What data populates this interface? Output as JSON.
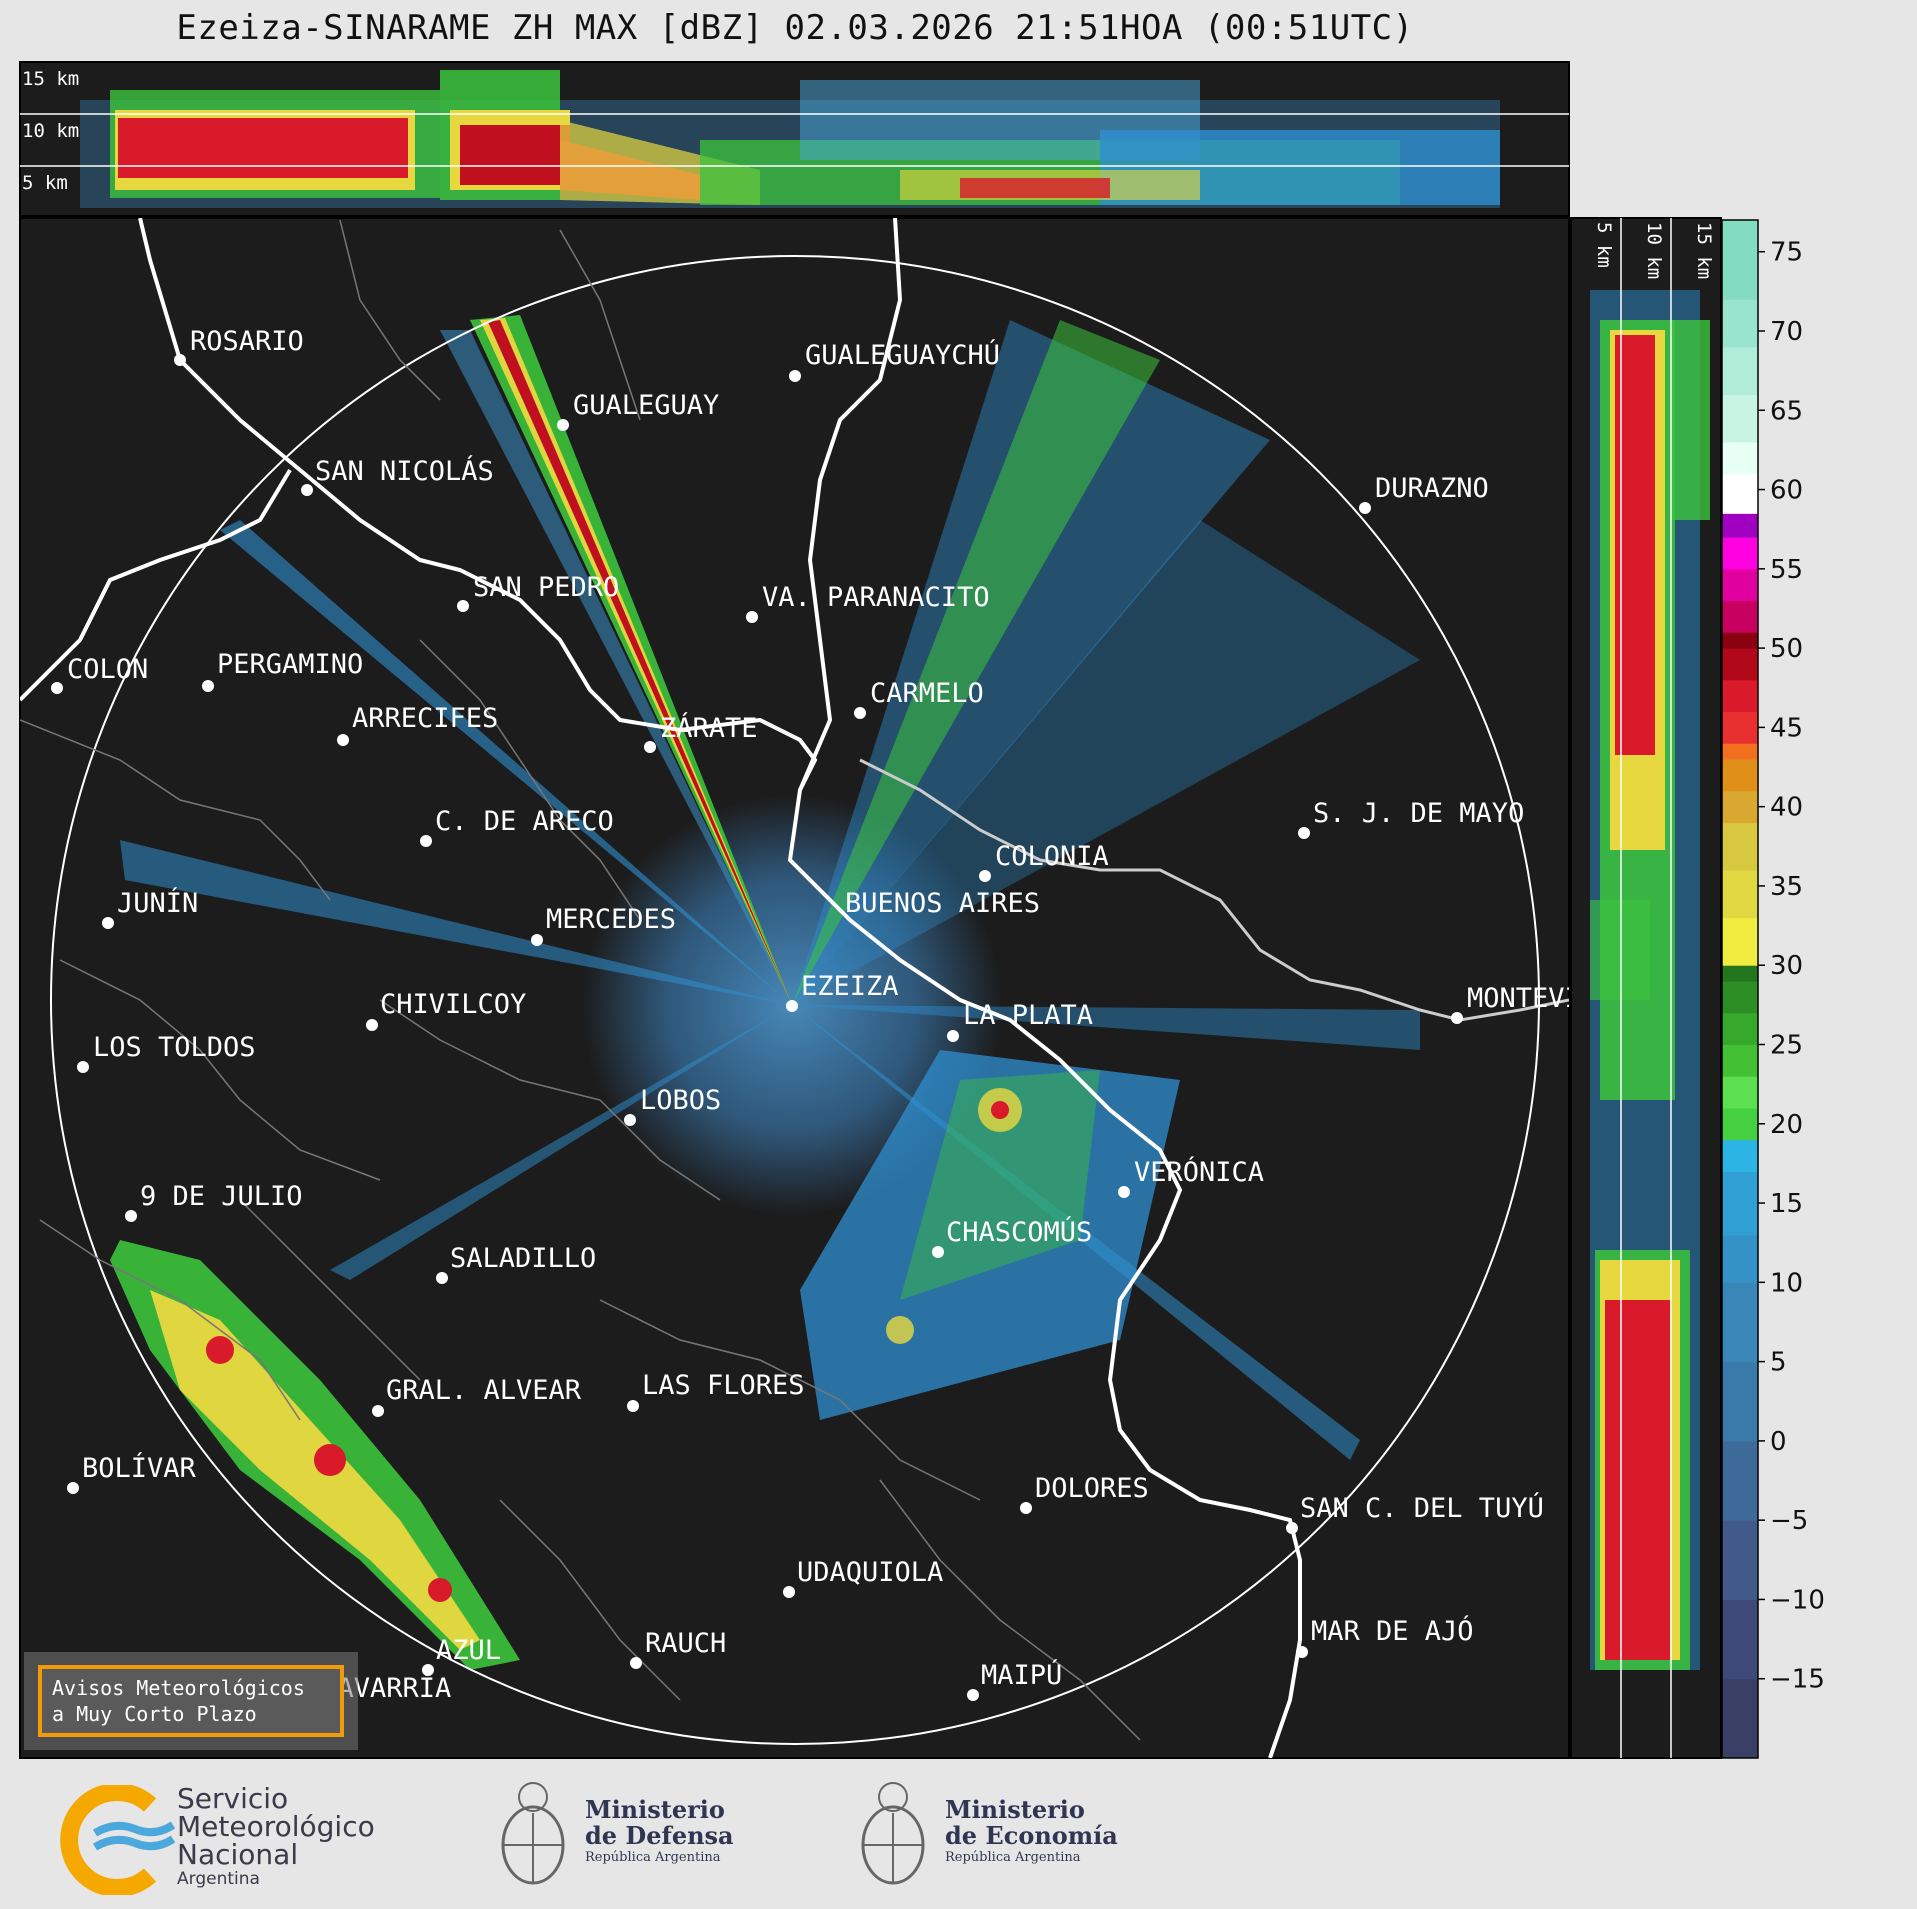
{
  "title": "Ezeiza-SINARAME ZH MAX [dBZ] 02.03.2026 21:51HOA (00:51UTC)",
  "top_panel": {
    "height_labels": [
      "15 km",
      "10 km",
      "5 km"
    ]
  },
  "side_panel": {
    "height_labels": [
      "5 km",
      "10 km",
      "15 km"
    ]
  },
  "colorbar": {
    "ticks": [
      "75",
      "70",
      "65",
      "60",
      "55",
      "50",
      "45",
      "40",
      "35",
      "30",
      "25",
      "20",
      "15",
      "10",
      "5",
      "0",
      "−5",
      "−10",
      "−15"
    ],
    "range": [
      -20,
      77
    ]
  },
  "cities": [
    {
      "name": "ROSARIO"
    },
    {
      "name": "GUALEGUAYCHÚ"
    },
    {
      "name": "GUALEGUAY"
    },
    {
      "name": "SAN NICOLÁS"
    },
    {
      "name": "DURAZNO"
    },
    {
      "name": "SAN PEDRO"
    },
    {
      "name": "VA. PARANACITO"
    },
    {
      "name": "COLON"
    },
    {
      "name": "PERGAMINO"
    },
    {
      "name": "CARMELO"
    },
    {
      "name": "ARRECIFES"
    },
    {
      "name": "ZÁRATE"
    },
    {
      "name": "S. J. DE MAYO"
    },
    {
      "name": "C. DE ARECO"
    },
    {
      "name": "COLONIA"
    },
    {
      "name": "JUNÍN"
    },
    {
      "name": "BUENOS AIRES"
    },
    {
      "name": "MERCEDES"
    },
    {
      "name": "EZEIZA"
    },
    {
      "name": "MONTEVIDEO"
    },
    {
      "name": "CHIVILCOY"
    },
    {
      "name": "LA PLATA"
    },
    {
      "name": "LOS TOLDOS"
    },
    {
      "name": "LOBOS"
    },
    {
      "name": "VERÓNICA"
    },
    {
      "name": "9 DE JULIO"
    },
    {
      "name": "CHASCOMÚS"
    },
    {
      "name": "SALADILLO"
    },
    {
      "name": "GRAL. ALVEAR"
    },
    {
      "name": "LAS FLORES"
    },
    {
      "name": "BOLÍVAR"
    },
    {
      "name": "DOLORES"
    },
    {
      "name": "SAN C. DEL TUYÚ"
    },
    {
      "name": "UDAQUIOLA"
    },
    {
      "name": "RAUCH"
    },
    {
      "name": "MAR DE AJÓ"
    },
    {
      "name": "AZUL"
    },
    {
      "name": "OLAVARRÍA"
    },
    {
      "name": "MAIPÚ"
    }
  ],
  "avisos": {
    "line1": "Avisos Meteorológicos",
    "line2": "a Muy Corto Plazo"
  },
  "logos": {
    "smn": {
      "line1": "Servicio",
      "line2": "Meteorológico",
      "line3": "Nacional",
      "line4": "Argentina"
    },
    "defensa": {
      "line1": "Ministerio",
      "line2": "de Defensa",
      "line3": "República Argentina"
    },
    "economia": {
      "line1": "Ministerio",
      "line2": "de Economía",
      "line3": "República Argentina"
    }
  },
  "colors": {
    "background": "#1c1c1c",
    "page": "#e6e6e6",
    "accent": "#f29b0a"
  }
}
